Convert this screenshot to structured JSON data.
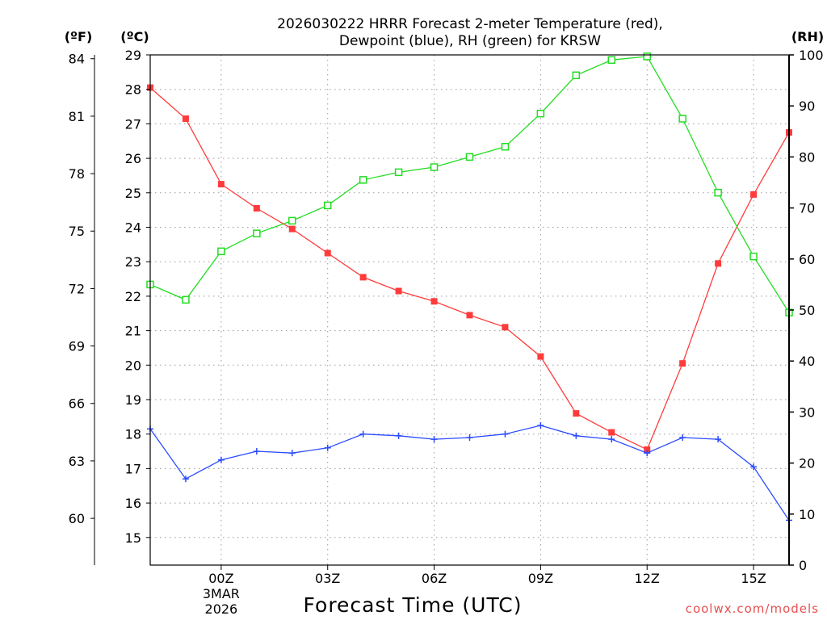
{
  "chart_data": {
    "type": "line",
    "title_line1": "2026030222 HRRR Forecast 2-meter Temperature (red),",
    "title_line2": "Dewpoint (blue), RH (green) for KRSW",
    "xlabel": "Forecast Time (UTC)",
    "credit": "coolwx.com/models",
    "axes": {
      "fahrenheit": {
        "unit": "(ºF)",
        "ticks": [
          "84",
          "81",
          "78",
          "75",
          "72",
          "69",
          "66",
          "63",
          "60"
        ],
        "tick_values": [
          84,
          81,
          78,
          75,
          72,
          69,
          66,
          63,
          60
        ]
      },
      "celsius": {
        "unit": "(ºC)",
        "ylim": [
          14.25,
          29.0
        ],
        "ticks": [
          "29",
          "28",
          "27",
          "26",
          "25",
          "24",
          "23",
          "22",
          "21",
          "20",
          "19",
          "18",
          "17",
          "16",
          "15"
        ],
        "tick_values": [
          29,
          28,
          27,
          26,
          25,
          24,
          23,
          22,
          21,
          20,
          19,
          18,
          17,
          16,
          15
        ]
      },
      "rh": {
        "unit": "(RH)",
        "ylim": [
          0,
          100
        ],
        "ticks": [
          "100",
          "90",
          "80",
          "70",
          "60",
          "50",
          "40",
          "30",
          "20",
          "10",
          "0"
        ],
        "tick_values": [
          100,
          90,
          80,
          70,
          60,
          50,
          40,
          30,
          20,
          10,
          0
        ]
      }
    },
    "x": {
      "range_hours": [
        -2,
        16
      ],
      "ticks": [
        "00Z",
        "03Z",
        "06Z",
        "09Z",
        "12Z",
        "15Z"
      ],
      "tick_hours": [
        0,
        3,
        6,
        9,
        12,
        15
      ],
      "date_line1": "3MAR",
      "date_line2": "2026"
    },
    "hours": [
      -2,
      -1,
      0,
      1,
      2,
      3,
      4,
      5,
      6,
      7,
      8,
      9,
      10,
      11,
      12,
      13,
      14,
      15,
      16
    ],
    "series": [
      {
        "name": "Temperature",
        "axis": "celsius",
        "color": "#ff3b3b",
        "marker": "filled-square",
        "values": [
          28.05,
          27.15,
          25.25,
          24.55,
          23.95,
          23.25,
          22.55,
          22.15,
          21.85,
          21.45,
          21.1,
          20.25,
          18.6,
          18.05,
          17.55,
          20.05,
          22.95,
          24.95,
          26.75
        ]
      },
      {
        "name": "Dewpoint",
        "axis": "celsius",
        "color": "#2a4bff",
        "marker": "plus",
        "values": [
          18.15,
          16.7,
          17.25,
          17.5,
          17.45,
          17.6,
          18.0,
          17.95,
          17.85,
          17.9,
          18.0,
          18.25,
          17.95,
          17.85,
          17.45,
          17.9,
          17.85,
          17.05,
          15.5
        ]
      },
      {
        "name": "RH",
        "axis": "rh",
        "color": "#22dd22",
        "marker": "open-square",
        "values": [
          55.0,
          52.0,
          61.5,
          65.0,
          67.5,
          70.5,
          75.5,
          77.0,
          78.0,
          80.0,
          82.0,
          88.5,
          96.0,
          99.0,
          99.7,
          87.5,
          73.0,
          60.5,
          49.5
        ]
      }
    ]
  }
}
